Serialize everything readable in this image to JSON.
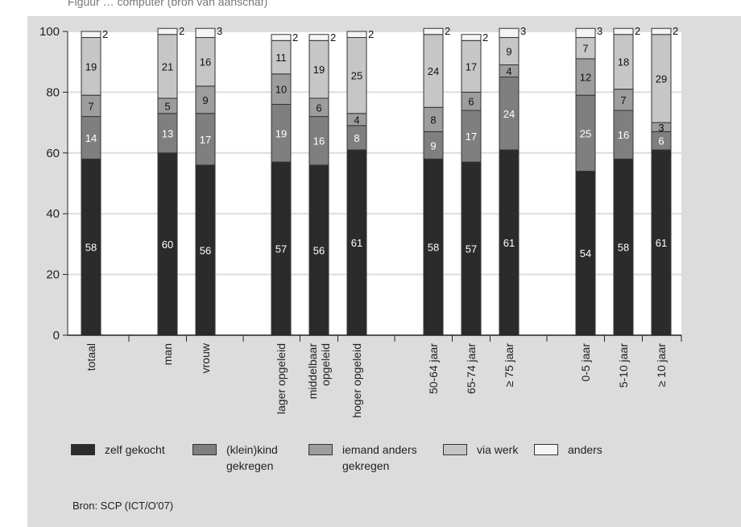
{
  "header_fragment": "Figuur … computer (bron van aanschaf)",
  "source": "Bron: SCP (ICT/O'07)",
  "colors": {
    "panel": "#dcdcdc",
    "plot": "#ffffff",
    "zelf": "#2b2b2b",
    "kleinkind": "#7f7f7f",
    "iemand": "#9d9d9d",
    "werk": "#c6c6c6",
    "anders": "#f4f4f4"
  },
  "legend": [
    {
      "key": "zelf",
      "label": "zelf gekocht"
    },
    {
      "key": "kleinkind",
      "label": "(klein)kind\ngekregen"
    },
    {
      "key": "iemand",
      "label": "iemand anders\ngekregen"
    },
    {
      "key": "werk",
      "label": "via werk"
    },
    {
      "key": "anders",
      "label": "anders"
    }
  ],
  "chart_data": {
    "type": "bar",
    "stacked": true,
    "ylim": [
      0,
      100
    ],
    "yticks": [
      0,
      20,
      40,
      60,
      80,
      100
    ],
    "grid": true,
    "legend_position": "bottom",
    "categories": [
      "totaal",
      "man",
      "vrouw",
      "lager opgeleid",
      "middelbaar opgeleid",
      "hoger opgeleid",
      "50-64 jaar",
      "65-74 jaar",
      "≥ 75 jaar",
      "0-5 jaar",
      "5-10 jaar",
      "≥ 10 jaar"
    ],
    "category_lines": [
      [
        "totaal"
      ],
      [
        "man"
      ],
      [
        "vrouw"
      ],
      [
        "lager opgeleid"
      ],
      [
        "middelbaar",
        "opgeleid"
      ],
      [
        "hoger opgeleid"
      ],
      [
        "50-64 jaar"
      ],
      [
        "65-74 jaar"
      ],
      [
        "≥ 75 jaar"
      ],
      [
        "0-5 jaar"
      ],
      [
        "5-10 jaar"
      ],
      [
        "≥ 10 jaar"
      ]
    ],
    "category_groups": [
      0,
      1,
      1,
      2,
      2,
      2,
      3,
      3,
      3,
      4,
      4,
      4
    ],
    "series": [
      {
        "name": "zelf gekocht",
        "key": "zelf",
        "values": [
          58,
          60,
          56,
          57,
          56,
          61,
          58,
          57,
          61,
          54,
          58,
          61
        ]
      },
      {
        "name": "(klein)kind gekregen",
        "key": "kleinkind",
        "values": [
          14,
          13,
          17,
          19,
          16,
          8,
          9,
          17,
          24,
          25,
          16,
          6
        ]
      },
      {
        "name": "iemand anders gekregen",
        "key": "iemand",
        "values": [
          7,
          5,
          9,
          10,
          6,
          4,
          8,
          6,
          4,
          12,
          7,
          3
        ]
      },
      {
        "name": "via werk",
        "key": "werk",
        "values": [
          19,
          21,
          16,
          11,
          19,
          25,
          24,
          17,
          9,
          7,
          18,
          29
        ]
      },
      {
        "name": "anders",
        "key": "anders",
        "values": [
          2,
          2,
          3,
          2,
          2,
          2,
          2,
          2,
          3,
          3,
          2,
          2
        ]
      }
    ]
  }
}
